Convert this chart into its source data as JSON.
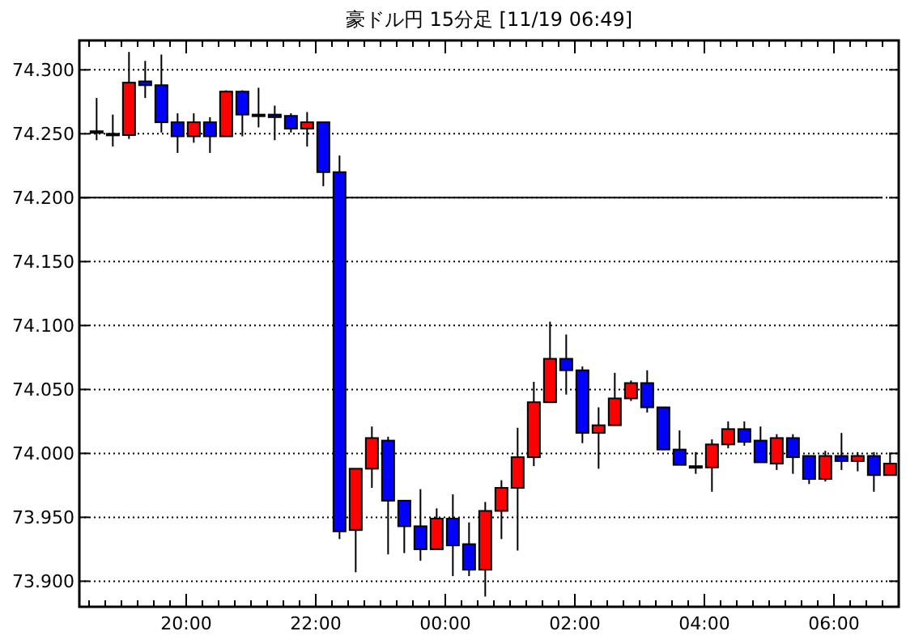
{
  "chart_data": {
    "type": "candlestick",
    "title": "豪ドル円 15分足 [11/19 06:49]",
    "x": [
      "--11-18T18:37",
      "--11-18T18:52",
      "--11-18T19:07",
      "--11-18T19:22",
      "--11-18T19:37",
      "--11-18T19:52",
      "--11-18T20:07",
      "--11-18T20:22",
      "--11-18T20:37",
      "--11-18T20:52",
      "--11-18T21:07",
      "--11-18T21:22",
      "--11-18T21:37",
      "--11-18T21:52",
      "--11-18T22:07",
      "--11-18T22:22",
      "--11-18T22:37",
      "--11-18T22:52",
      "--11-18T23:07",
      "--11-18T23:22",
      "--11-18T23:37",
      "--11-18T23:52",
      "--11-19T00:07",
      "--11-19T00:22",
      "--11-19T00:37",
      "--11-19T00:52",
      "--11-19T01:07",
      "--11-19T01:22",
      "--11-19T01:37",
      "--11-19T01:52",
      "--11-19T02:07",
      "--11-19T02:22",
      "--11-19T02:37",
      "--11-19T02:52",
      "--11-19T03:07",
      "--11-19T03:22",
      "--11-19T03:37",
      "--11-19T03:52",
      "--11-19T04:07",
      "--11-19T04:22",
      "--11-19T04:37",
      "--11-19T04:52",
      "--11-19T05:07",
      "--11-19T05:22",
      "--11-19T05:37",
      "--11-19T05:52",
      "--11-19T06:07",
      "--11-19T06:22",
      "--11-19T06:37",
      "--11-19T06:52"
    ],
    "ohlc": [
      [
        74.252,
        74.278,
        74.245,
        74.251
      ],
      [
        74.25,
        74.265,
        74.24,
        74.25
      ],
      [
        74.249,
        74.314,
        74.246,
        74.29
      ],
      [
        74.291,
        74.307,
        74.278,
        74.288
      ],
      [
        74.288,
        74.312,
        74.251,
        74.259
      ],
      [
        74.259,
        74.266,
        74.235,
        74.248
      ],
      [
        74.248,
        74.266,
        74.243,
        74.259
      ],
      [
        74.259,
        74.263,
        74.235,
        74.248
      ],
      [
        74.248,
        74.284,
        74.248,
        74.283
      ],
      [
        74.283,
        74.284,
        74.248,
        74.265
      ],
      [
        74.265,
        74.286,
        74.255,
        74.265
      ],
      [
        74.265,
        74.272,
        74.245,
        74.263
      ],
      [
        74.264,
        74.266,
        74.251,
        74.254
      ],
      [
        74.254,
        74.267,
        74.24,
        74.259
      ],
      [
        74.259,
        74.259,
        74.209,
        74.22
      ],
      [
        74.22,
        74.233,
        73.933,
        73.939
      ],
      [
        73.94,
        73.988,
        73.907,
        73.988
      ],
      [
        73.988,
        74.021,
        73.973,
        74.012
      ],
      [
        74.01,
        74.013,
        73.921,
        73.963
      ],
      [
        73.963,
        73.963,
        73.922,
        73.943
      ],
      [
        73.943,
        73.972,
        73.916,
        73.925
      ],
      [
        73.925,
        73.957,
        73.925,
        73.949
      ],
      [
        73.949,
        73.968,
        73.904,
        73.928
      ],
      [
        73.929,
        73.946,
        73.904,
        73.909
      ],
      [
        73.909,
        73.962,
        73.888,
        73.955
      ],
      [
        73.955,
        73.979,
        73.933,
        73.973
      ],
      [
        73.973,
        74.02,
        73.924,
        73.997
      ],
      [
        73.997,
        74.056,
        73.99,
        74.04
      ],
      [
        74.04,
        74.103,
        74.04,
        74.074
      ],
      [
        74.074,
        74.093,
        74.046,
        74.065
      ],
      [
        74.065,
        74.068,
        74.008,
        74.016
      ],
      [
        74.016,
        74.036,
        73.988,
        74.022
      ],
      [
        74.022,
        74.063,
        74.022,
        74.043
      ],
      [
        74.043,
        74.057,
        74.041,
        74.055
      ],
      [
        74.055,
        74.065,
        74.032,
        74.036
      ],
      [
        74.036,
        74.036,
        74.003,
        74.003
      ],
      [
        74.003,
        74.018,
        73.991,
        73.991
      ],
      [
        73.99,
        74.001,
        73.984,
        73.99
      ],
      [
        73.989,
        74.011,
        73.97,
        74.007
      ],
      [
        74.007,
        74.025,
        74.004,
        74.019
      ],
      [
        74.019,
        74.025,
        74.006,
        74.009
      ],
      [
        74.01,
        74.021,
        73.993,
        73.993
      ],
      [
        73.992,
        74.015,
        73.987,
        74.012
      ],
      [
        74.012,
        74.015,
        73.984,
        73.997
      ],
      [
        73.998,
        73.998,
        73.976,
        73.98
      ],
      [
        73.98,
        74.002,
        73.978,
        73.998
      ],
      [
        73.998,
        74.016,
        73.987,
        73.994
      ],
      [
        73.994,
        74.001,
        73.986,
        73.998
      ],
      [
        73.998,
        74.001,
        73.97,
        73.983
      ],
      [
        73.983,
        74,
        73.983,
        73.992
      ]
    ],
    "colors": [
      "#0000ff",
      "#000000",
      "#ff0000",
      "#0000ff",
      "#0000ff",
      "#0000ff",
      "#ff0000",
      "#0000ff",
      "#ff0000",
      "#0000ff",
      "#000000",
      "#0000ff",
      "#0000ff",
      "#ff0000",
      "#0000ff",
      "#0000ff",
      "#ff0000",
      "#ff0000",
      "#0000ff",
      "#0000ff",
      "#0000ff",
      "#ff0000",
      "#0000ff",
      "#0000ff",
      "#ff0000",
      "#ff0000",
      "#ff0000",
      "#ff0000",
      "#ff0000",
      "#0000ff",
      "#0000ff",
      "#ff0000",
      "#ff0000",
      "#ff0000",
      "#0000ff",
      "#0000ff",
      "#0000ff",
      "#000000",
      "#ff0000",
      "#ff0000",
      "#0000ff",
      "#0000ff",
      "#ff0000",
      "#0000ff",
      "#0000ff",
      "#ff0000",
      "#0000ff",
      "#ff0000",
      "#0000ff",
      "#ff0000"
    ],
    "xlim": [
      "--11-18T18:21",
      "--11-19T07:00"
    ],
    "xticks": [
      {
        "value": "--11-18T20:00",
        "label": "20:00"
      },
      {
        "value": "--11-18T22:00",
        "label": "22:00"
      },
      {
        "value": "--11-19T00:00",
        "label": "00:00"
      },
      {
        "value": "--11-19T02:00",
        "label": "02:00"
      },
      {
        "value": "--11-19T04:00",
        "label": "04:00"
      },
      {
        "value": "--11-19T06:00",
        "label": "06:00"
      }
    ],
    "ylim": [
      73.88,
      74.323
    ],
    "yticks": [
      {
        "value": 73.9,
        "label": "73.900"
      },
      {
        "value": 73.95,
        "label": "73.950"
      },
      {
        "value": 74,
        "label": "74.000"
      },
      {
        "value": 74.05,
        "label": "74.050"
      },
      {
        "value": 74.1,
        "label": "74.100"
      },
      {
        "value": 74.15,
        "label": "74.150"
      },
      {
        "value": 74.2,
        "label": "74.200"
      },
      {
        "value": 74.25,
        "label": "74.250"
      },
      {
        "value": 74.3,
        "label": "74.300"
      }
    ],
    "grid": "y",
    "ref_lines": [
      {
        "axis": "y",
        "value": 74.2,
        "color": "#000000",
        "line_style": "solid"
      }
    ]
  }
}
